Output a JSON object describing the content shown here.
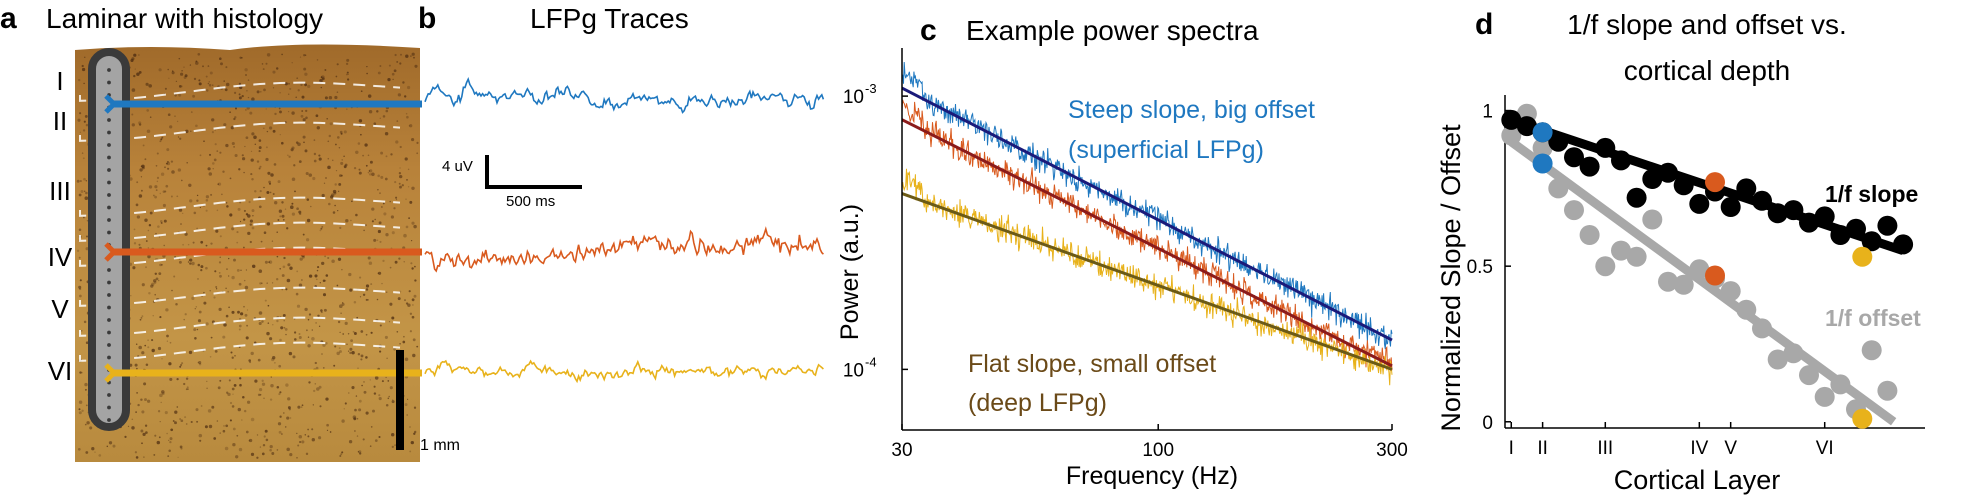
{
  "panels": {
    "a": {
      "letter": "a",
      "title": "Laminar with histology",
      "layers": [
        "I",
        "II",
        "III",
        "IV",
        "V",
        "VI"
      ],
      "scale_label": "1 mm"
    },
    "b": {
      "letter": "b",
      "title": "LFPg Traces",
      "scale_v": "4 uV",
      "scale_t": "500 ms"
    },
    "c": {
      "letter": "c",
      "title": "Example power spectra",
      "annot_top_1": "Steep slope, big offset",
      "annot_top_2": "(superficial LFPg)",
      "annot_bot_1": "Flat slope, small offset",
      "annot_bot_2": "(deep LFPg)"
    },
    "d": {
      "letter": "d",
      "title_1": "1/f slope and offset vs.",
      "title_2": "cortical depth",
      "slope_label": "1/f slope",
      "offset_label": "1/f offset"
    }
  },
  "colors": {
    "superficial": "#1f78c0",
    "middle": "#d95a1e",
    "deep": "#e8b21b",
    "fit_superficial": "#1a1a7a",
    "fit_middle": "#8b1b1b",
    "fit_deep": "#6b5a16",
    "slope": "#000000",
    "offset": "#a8a8a8",
    "annot_deep": "#6b4a18"
  },
  "chart_data": [
    {
      "panel": "c",
      "type": "line",
      "title": "Example power spectra",
      "xlabel": "Frequency (Hz)",
      "ylabel": "Power (a.u.)",
      "xscale": "log",
      "yscale": "log",
      "xlim": [
        30,
        300
      ],
      "ylim": [
        6e-05,
        0.0015
      ],
      "xticks": [
        30,
        100,
        300
      ],
      "xtick_labels": [
        "30",
        "100",
        "300"
      ],
      "yticks": [
        0.001,
        0.0001
      ],
      "ytick_labels": [
        "10-3",
        "10-4"
      ],
      "series": [
        {
          "color_key": "superficial",
          "fit_color_key": "fit_superficial",
          "fit_x": [
            30,
            300
          ],
          "fit_y": [
            0.00107,
            0.000128
          ]
        },
        {
          "color_key": "middle",
          "fit_color_key": "fit_middle",
          "fit_x": [
            30,
            300
          ],
          "fit_y": [
            0.00082,
            0.000103
          ]
        },
        {
          "color_key": "deep",
          "fit_color_key": "fit_deep",
          "fit_x": [
            30,
            300
          ],
          "fit_y": [
            0.00044,
            0.0001
          ]
        }
      ]
    },
    {
      "panel": "d",
      "type": "scatter",
      "xlabel": "Cortical Layer",
      "ylabel": "Normalized Slope / Offset",
      "xlim": [
        0.8,
        14.2
      ],
      "ylim": [
        -0.02,
        1.05
      ],
      "xticks": [
        1,
        2,
        4,
        7,
        8,
        11
      ],
      "xtick_labels": [
        "I",
        "II",
        "III",
        "IV",
        "V",
        "VI"
      ],
      "yticks": [
        0,
        0.5,
        1
      ],
      "ytick_labels": [
        "0",
        "0.5",
        "1"
      ],
      "series": [
        {
          "name": "1/f slope",
          "color_key": "slope",
          "x": [
            1,
            1.5,
            2,
            2.5,
            3,
            3.5,
            4,
            4.5,
            5,
            5.5,
            6,
            6.5,
            7,
            7.5,
            8,
            8.5,
            9,
            9.5,
            10,
            10.5,
            11,
            11.5,
            12,
            12.5,
            13,
            13.5
          ],
          "y": [
            0.97,
            0.95,
            0.93,
            0.9,
            0.85,
            0.82,
            0.88,
            0.84,
            0.72,
            0.78,
            0.8,
            0.76,
            0.7,
            0.74,
            0.69,
            0.75,
            0.71,
            0.67,
            0.68,
            0.64,
            0.66,
            0.6,
            0.62,
            0.58,
            0.63,
            0.57
          ],
          "fit_x": [
            1,
            13.5
          ],
          "fit_y": [
            0.97,
            0.55
          ]
        },
        {
          "name": "1/f offset",
          "color_key": "offset",
          "x": [
            1,
            1.5,
            2,
            2.5,
            3,
            3.5,
            4,
            4.5,
            5,
            5.5,
            6,
            6.5,
            7,
            7.5,
            8,
            8.5,
            9,
            9.5,
            10,
            10.5,
            11,
            11.5,
            12,
            12.5,
            13
          ],
          "y": [
            0.92,
            0.99,
            0.88,
            0.75,
            0.68,
            0.6,
            0.5,
            0.55,
            0.53,
            0.65,
            0.45,
            0.44,
            0.49,
            0.46,
            0.42,
            0.36,
            0.3,
            0.2,
            0.22,
            0.15,
            0.08,
            0.12,
            0.04,
            0.23,
            0.1
          ],
          "fit_x": [
            1,
            13.2
          ],
          "fit_y": [
            0.9,
            0.0
          ]
        }
      ],
      "highlight_points": [
        {
          "x": 2,
          "y": 0.93,
          "color_key": "superficial"
        },
        {
          "x": 2,
          "y": 0.83,
          "color_key": "superficial"
        },
        {
          "x": 7.5,
          "y": 0.77,
          "color_key": "middle"
        },
        {
          "x": 7.5,
          "y": 0.47,
          "color_key": "middle"
        },
        {
          "x": 12.2,
          "y": 0.53,
          "color_key": "deep"
        },
        {
          "x": 12.2,
          "y": 0.01,
          "color_key": "deep"
        }
      ]
    }
  ]
}
